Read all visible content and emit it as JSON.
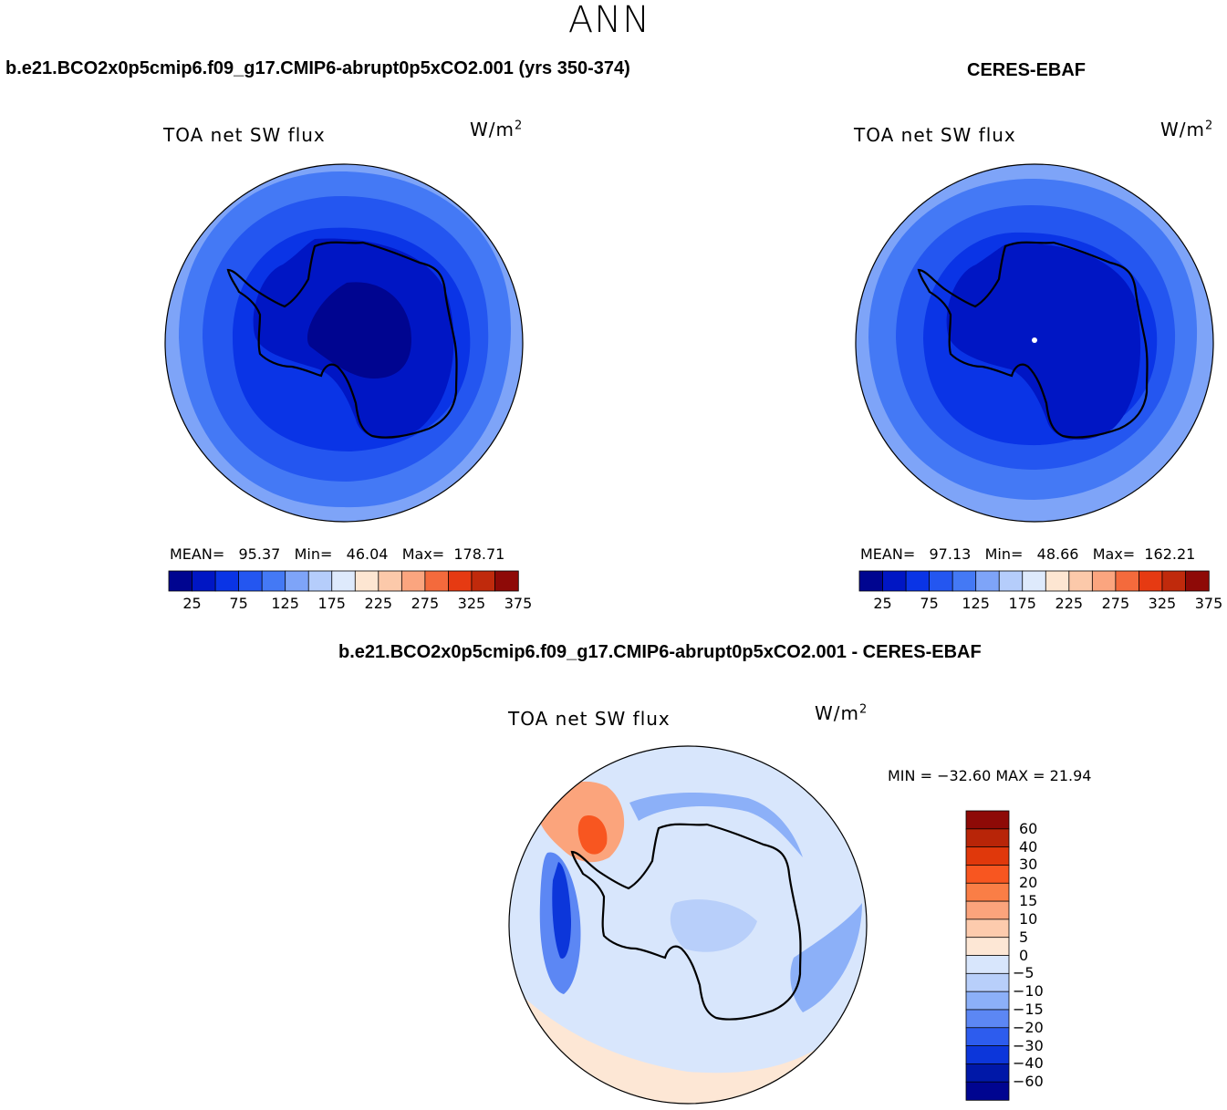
{
  "figure": {
    "season": "ANN"
  },
  "panels": {
    "model": {
      "title": "b.e21.BCO2x0p5cmip6.f09_g17.CMIP6-abrupt0p5xCO2.001 (yrs 350-374)",
      "variable": "TOA net SW flux",
      "units_base": "W/m",
      "units_exp": "2",
      "mean_label": "MEAN=",
      "mean": "95.37",
      "min_label": "Min=",
      "min": "46.04",
      "max_label": "Max=",
      "max": "178.71",
      "contour_levels": [
        25,
        50,
        75,
        100,
        125,
        150,
        175,
        200,
        225,
        250,
        275,
        300,
        325,
        350,
        375
      ],
      "colorbar_ticks": [
        "25",
        "75",
        "125",
        "175",
        "225",
        "275",
        "325",
        "375"
      ]
    },
    "obs": {
      "title": "CERES-EBAF",
      "variable": "TOA net SW flux",
      "units_base": "W/m",
      "units_exp": "2",
      "mean_label": "MEAN=",
      "mean": "97.13",
      "min_label": "Min=",
      "min": "48.66",
      "max_label": "Max=",
      "max": "162.21",
      "contour_levels": [
        25,
        50,
        75,
        100,
        125,
        150,
        175,
        200,
        225,
        250,
        275,
        300,
        325,
        350,
        375
      ],
      "colorbar_ticks": [
        "25",
        "75",
        "125",
        "175",
        "225",
        "275",
        "325",
        "375"
      ]
    },
    "diff": {
      "title": "b.e21.BCO2x0p5cmip6.f09_g17.CMIP6-abrupt0p5xCO2.001 - CERES-EBAF",
      "variable": "TOA net SW flux",
      "units_base": "W/m",
      "units_exp": "2",
      "stats_text": "MIN = −32.60 MAX =  21.94",
      "colorbar_ticks": [
        "60",
        "40",
        "30",
        "20",
        "15",
        "10",
        "5",
        "0",
        "−5",
        "−10",
        "−15",
        "−20",
        "−30",
        "−40",
        "−60"
      ]
    }
  },
  "colors": {
    "abs_scale": [
      "#000590",
      "#0016C4",
      "#0A34E6",
      "#2456F0",
      "#4479F5",
      "#7EA4F8",
      "#B5CDFB",
      "#DEEAFC",
      "#FDE6D2",
      "#FCC9AA",
      "#FBA57F",
      "#F46A3C",
      "#E63A12",
      "#C02A0C",
      "#8E0A07"
    ],
    "diff_scale": [
      "#8E0A07",
      "#B82508",
      "#E0380B",
      "#F85620",
      "#FA7E46",
      "#FBA47C",
      "#FDCBAD",
      "#FDE7D5",
      "#D8E6FC",
      "#B8CFFA",
      "#8CB0F8",
      "#5C87F4",
      "#2D5CEE",
      "#0C36DA",
      "#0018A8",
      "#000590"
    ]
  }
}
